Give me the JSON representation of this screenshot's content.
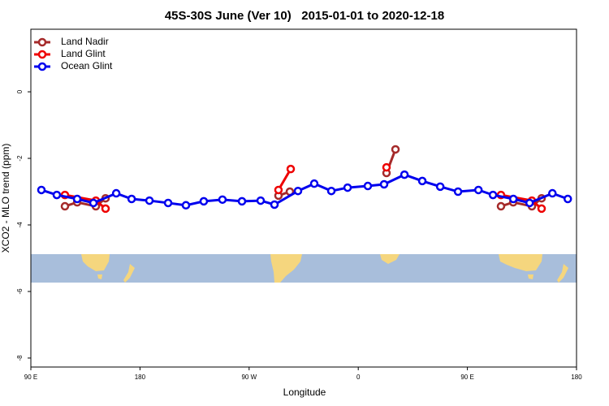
{
  "chart_data": {
    "type": "line",
    "title": "45S-30S June (Ver 10)   2015-01-01 to 2020-12-18",
    "xlabel": "Longitude",
    "ylabel": "XCO2 - MLO trend (ppm)",
    "xlim": [
      90,
      540
    ],
    "xticks": [
      {
        "value": 90,
        "label": "90 E"
      },
      {
        "value": 180,
        "label": "180"
      },
      {
        "value": 270,
        "label": "90 W"
      },
      {
        "value": 360,
        "label": "0"
      },
      {
        "value": 450,
        "label": "90 E"
      },
      {
        "value": 540,
        "label": "180"
      }
    ],
    "ylim": [
      -8.27,
      1.88
    ],
    "yticks": [
      0,
      -2,
      -4,
      -6,
      -8
    ],
    "legend": "topleft",
    "series": [
      {
        "name": "Land Nadir",
        "color": "#a52a2a",
        "x": [
          118.1,
          128.2,
          143.6,
          151.6,
          null,
          294.2,
          303.6,
          null,
          383.3,
          390.7,
          null,
          477.7,
          487.8,
          503.2,
          511.2
        ],
        "values": [
          -3.44,
          -3.32,
          -3.44,
          -3.2,
          null,
          -3.12,
          -3.0,
          null,
          -2.44,
          -1.73,
          null,
          -3.44,
          -3.32,
          -3.44,
          -3.2
        ]
      },
      {
        "name": "Land Glint",
        "color": "#ee0000",
        "x": [
          118.1,
          143.6,
          151.6,
          null,
          294.2,
          304.3,
          null,
          383.3,
          null,
          477.7,
          503.2,
          511.2
        ],
        "values": [
          -3.1,
          -3.27,
          -3.51,
          null,
          -2.95,
          -2.32,
          null,
          -2.27,
          null,
          -3.1,
          -3.27,
          -3.51
        ]
      },
      {
        "name": "Ocean Glint",
        "color": "#0000ee",
        "x": [
          98.7,
          111.4,
          128.2,
          141.6,
          160.4,
          173.1,
          187.8,
          203.2,
          217.9,
          232.6,
          248.0,
          264.1,
          279.5,
          290.9,
          310.3,
          323.7,
          337.8,
          351.2,
          367.9,
          381.3,
          398.1,
          412.8,
          427.6,
          442.3,
          459.1,
          471.1,
          487.9,
          501.3,
          520.1,
          532.8
        ],
        "values": [
          -2.95,
          -3.1,
          -3.22,
          -3.34,
          -3.05,
          -3.22,
          -3.27,
          -3.34,
          -3.41,
          -3.29,
          -3.24,
          -3.29,
          -3.27,
          -3.39,
          -2.98,
          -2.76,
          -2.98,
          -2.88,
          -2.83,
          -2.78,
          -2.49,
          -2.68,
          -2.85,
          -3.0,
          -2.95,
          -3.1,
          -3.22,
          -3.34,
          -3.05,
          -3.22
        ]
      }
    ]
  }
}
